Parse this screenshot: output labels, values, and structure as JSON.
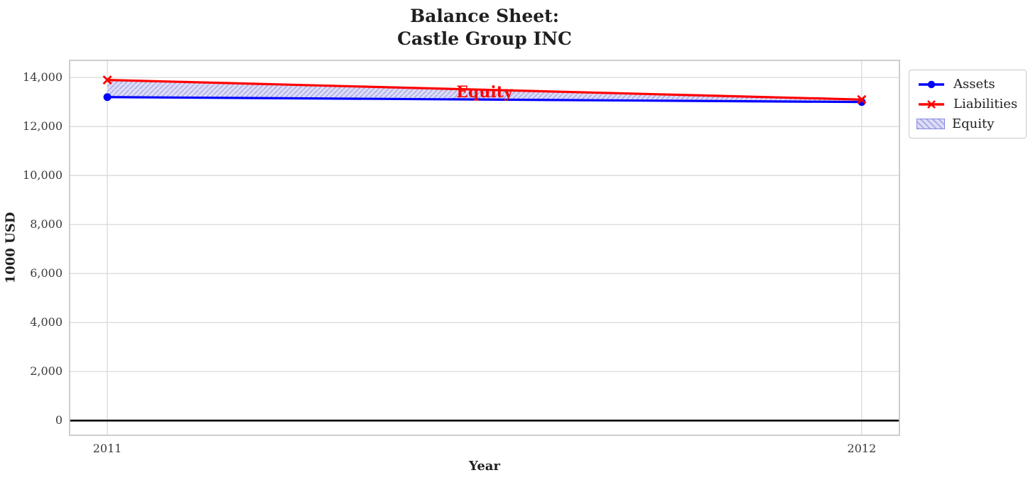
{
  "title": {
    "line1": "Balance Sheet:",
    "line2": "Castle Group INC"
  },
  "chart_data": {
    "type": "line",
    "x": [
      2011,
      2012
    ],
    "series": [
      {
        "name": "Assets",
        "color": "#0000ff",
        "marker": "circle",
        "values": [
          13200,
          13000
        ]
      },
      {
        "name": "Liabilities",
        "color": "#ff0000",
        "marker": "x",
        "values": [
          13900,
          13100
        ]
      }
    ],
    "equity_area": {
      "name": "Equity",
      "between": [
        "Assets",
        "Liabilities"
      ],
      "fill": "#dcdcf6",
      "hatch": "///",
      "hatch_color": "#a5a5e6",
      "edge": "#8888dd"
    },
    "annotation": {
      "text": "Equity",
      "x": 2011.5,
      "y": 13400,
      "color": "#ff0000"
    },
    "xlabel": "Year",
    "ylabel": "1000 USD",
    "xlim": [
      2010.95,
      2012.05
    ],
    "ylim": [
      -600,
      14700
    ],
    "yticks": [
      {
        "value": 0,
        "label": "0"
      },
      {
        "value": 2000,
        "label": "2,000"
      },
      {
        "value": 4000,
        "label": "4,000"
      },
      {
        "value": 6000,
        "label": "6,000"
      },
      {
        "value": 8000,
        "label": "8,000"
      },
      {
        "value": 10000,
        "label": "10,000"
      },
      {
        "value": 12000,
        "label": "12,000"
      },
      {
        "value": 14000,
        "label": "14,000"
      }
    ],
    "xticks": [
      {
        "value": 2011,
        "label": "2011"
      },
      {
        "value": 2012,
        "label": "2012"
      }
    ],
    "grid": true,
    "grid_color": "#d9d9d9",
    "zero_line_color": "#000000",
    "legend": {
      "position": "upper right outside",
      "entries": [
        "Assets",
        "Liabilities",
        "Equity"
      ]
    }
  }
}
